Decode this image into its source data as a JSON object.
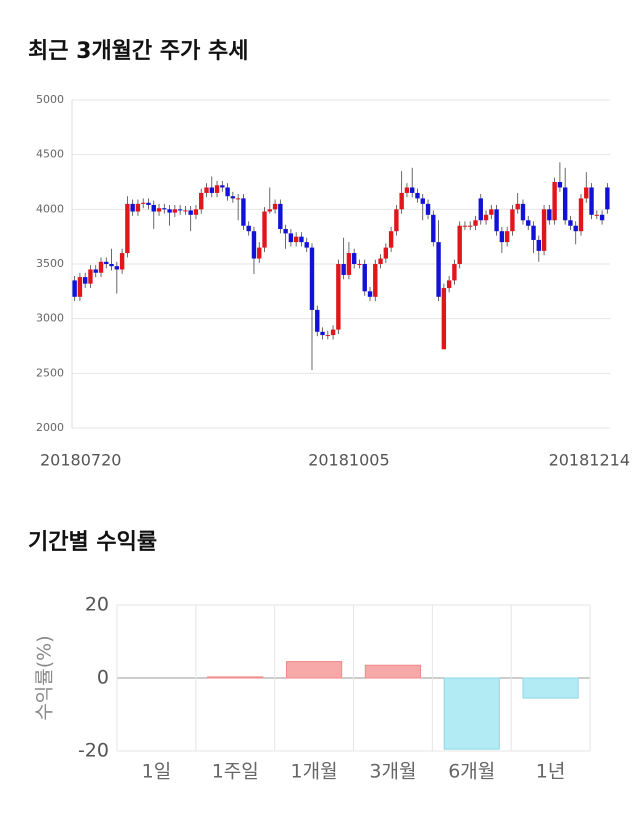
{
  "chart_data": [
    {
      "type": "candlestick",
      "title": "최근 3개월간 주가 추세",
      "categories": [
        "20180720",
        null,
        null,
        null,
        null,
        null,
        null,
        null,
        null,
        null,
        null,
        null,
        null,
        null,
        null,
        null,
        null,
        null,
        null,
        null,
        null,
        null,
        null,
        null,
        null,
        null,
        null,
        null,
        null,
        null,
        null,
        null,
        null,
        null,
        null,
        null,
        null,
        null,
        null,
        null,
        null,
        null,
        null,
        null,
        null,
        null,
        null,
        null,
        null,
        null,
        null,
        null,
        "20181005",
        null,
        null,
        null,
        null,
        null,
        null,
        null,
        null,
        null,
        null,
        null,
        null,
        null,
        null,
        null,
        null,
        null,
        null,
        null,
        null,
        null,
        null,
        null,
        null,
        null,
        null,
        null,
        null,
        null,
        null,
        null,
        null,
        null,
        null,
        null,
        null,
        null,
        null,
        null,
        null,
        null,
        null,
        null,
        null,
        null,
        null,
        null,
        null,
        "20181214"
      ],
      "open": [
        3350,
        3200,
        3380,
        3320,
        3450,
        3420,
        3520,
        3500,
        3480,
        3450,
        3600,
        4050,
        3980,
        4050,
        4060,
        4040,
        3980,
        4010,
        4000,
        3970,
        4000,
        3990,
        3990,
        3950,
        4000,
        4150,
        4200,
        4150,
        4220,
        4200,
        4120,
        4100,
        4100,
        3850,
        3800,
        3550,
        3650,
        3980,
        4000,
        4050,
        3820,
        3780,
        3700,
        3750,
        3700,
        3650,
        3080,
        2880,
        2850,
        2850,
        2900,
        3500,
        3400,
        3600,
        3500,
        3500,
        3250,
        3200,
        3500,
        3550,
        3650,
        3800,
        4000,
        4150,
        4200,
        4150,
        4100,
        4050,
        3950,
        3700,
        2720,
        3280,
        3350,
        3500,
        3850,
        3850,
        3850,
        4100,
        3900,
        3950,
        4000,
        3800,
        3700,
        3800,
        4000,
        4050,
        3900,
        3850,
        3720,
        3620,
        4000,
        3900,
        4250,
        4200,
        3900,
        3850,
        3800,
        4100,
        4200,
        3950,
        3950,
        4200
      ],
      "high": [
        3390,
        3420,
        3420,
        3490,
        3490,
        3560,
        3560,
        3640,
        3520,
        3640,
        4120,
        4090,
        4090,
        4100,
        4100,
        4080,
        4050,
        4050,
        4040,
        4040,
        4040,
        4030,
        4030,
        4040,
        4190,
        4240,
        4300,
        4260,
        4260,
        4240,
        4160,
        4140,
        4140,
        3890,
        3840,
        3700,
        4020,
        4200,
        4090,
        4090,
        3860,
        3820,
        3790,
        3790,
        3740,
        3690,
        3120,
        2920,
        2890,
        2940,
        3540,
        3740,
        3700,
        3640,
        3540,
        3540,
        3290,
        3540,
        3590,
        3690,
        3840,
        4040,
        4350,
        4240,
        4380,
        4190,
        4140,
        4090,
        3990,
        3900,
        3320,
        3390,
        3540,
        3890,
        3890,
        3890,
        3940,
        4140,
        3990,
        4040,
        4040,
        3840,
        3840,
        4040,
        4150,
        4090,
        3940,
        3890,
        3760,
        4040,
        4040,
        4290,
        4430,
        4380,
        3940,
        3890,
        4140,
        4340,
        4240,
        3990,
        3990,
        4240
      ],
      "low": [
        3160,
        3160,
        3280,
        3280,
        3380,
        3380,
        3460,
        3440,
        3230,
        3410,
        3560,
        3940,
        3940,
        4010,
        4000,
        3820,
        3940,
        3960,
        3850,
        3930,
        3950,
        3950,
        3800,
        3910,
        3960,
        4110,
        4110,
        4110,
        4160,
        4080,
        4060,
        3900,
        3810,
        3760,
        3410,
        3510,
        3610,
        3960,
        3960,
        3780,
        3640,
        3660,
        3660,
        3660,
        3610,
        2530,
        2840,
        2810,
        2810,
        2810,
        2860,
        3360,
        3360,
        3460,
        3460,
        3210,
        3160,
        3160,
        3460,
        3510,
        3610,
        3760,
        3960,
        4110,
        4110,
        4060,
        3900,
        3910,
        3660,
        3160,
        2720,
        3240,
        3310,
        3460,
        3810,
        3810,
        3810,
        3860,
        3860,
        3910,
        3760,
        3600,
        3660,
        3760,
        3960,
        3860,
        3810,
        3600,
        3520,
        3580,
        3860,
        3860,
        4160,
        3860,
        3810,
        3680,
        3760,
        4060,
        3910,
        3910,
        3860,
        3960
      ],
      "close": [
        3200,
        3380,
        3320,
        3450,
        3420,
        3520,
        3500,
        3480,
        3450,
        3600,
        4050,
        3980,
        4050,
        4060,
        4040,
        3980,
        4010,
        4000,
        3970,
        4000,
        3990,
        3990,
        3950,
        4000,
        4150,
        4200,
        4150,
        4220,
        4200,
        4120,
        4100,
        4100,
        3850,
        3800,
        3550,
        3650,
        3980,
        4000,
        4050,
        3820,
        3780,
        3700,
        3750,
        3700,
        3650,
        3080,
        2880,
        2850,
        2850,
        2900,
        3500,
        3400,
        3600,
        3500,
        3500,
        3250,
        3200,
        3500,
        3550,
        3650,
        3800,
        4000,
        4150,
        4200,
        4150,
        4100,
        4050,
        3950,
        3700,
        3200,
        3280,
        3350,
        3500,
        3850,
        3850,
        3850,
        3900,
        3900,
        3950,
        4000,
        3800,
        3700,
        3800,
        4000,
        4050,
        3900,
        3850,
        3720,
        3620,
        4000,
        3900,
        4250,
        4200,
        3900,
        3850,
        3800,
        4100,
        4200,
        3950,
        3950,
        3900,
        4000
      ],
      "up_color": "#e0161c",
      "down_color": "#1212d6",
      "ylim": [
        2000,
        5000
      ],
      "yticks": [
        2000,
        2500,
        3000,
        3500,
        4000,
        4500,
        5000
      ],
      "grid": true
    },
    {
      "type": "bar",
      "title": "기간별 수익률",
      "ylabel": "수익률(%)",
      "categories": [
        "1일",
        "1주일",
        "1개월",
        "3개월",
        "6개월",
        "1년"
      ],
      "values": [
        0,
        0.3,
        4.5,
        3.5,
        -19.5,
        -5.5
      ],
      "positive_color": "#f7a8a8",
      "negative_color": "#b2ebf4",
      "ylim": [
        -20,
        20
      ],
      "yticks": [
        -20,
        0,
        20
      ],
      "grid": true
    }
  ]
}
